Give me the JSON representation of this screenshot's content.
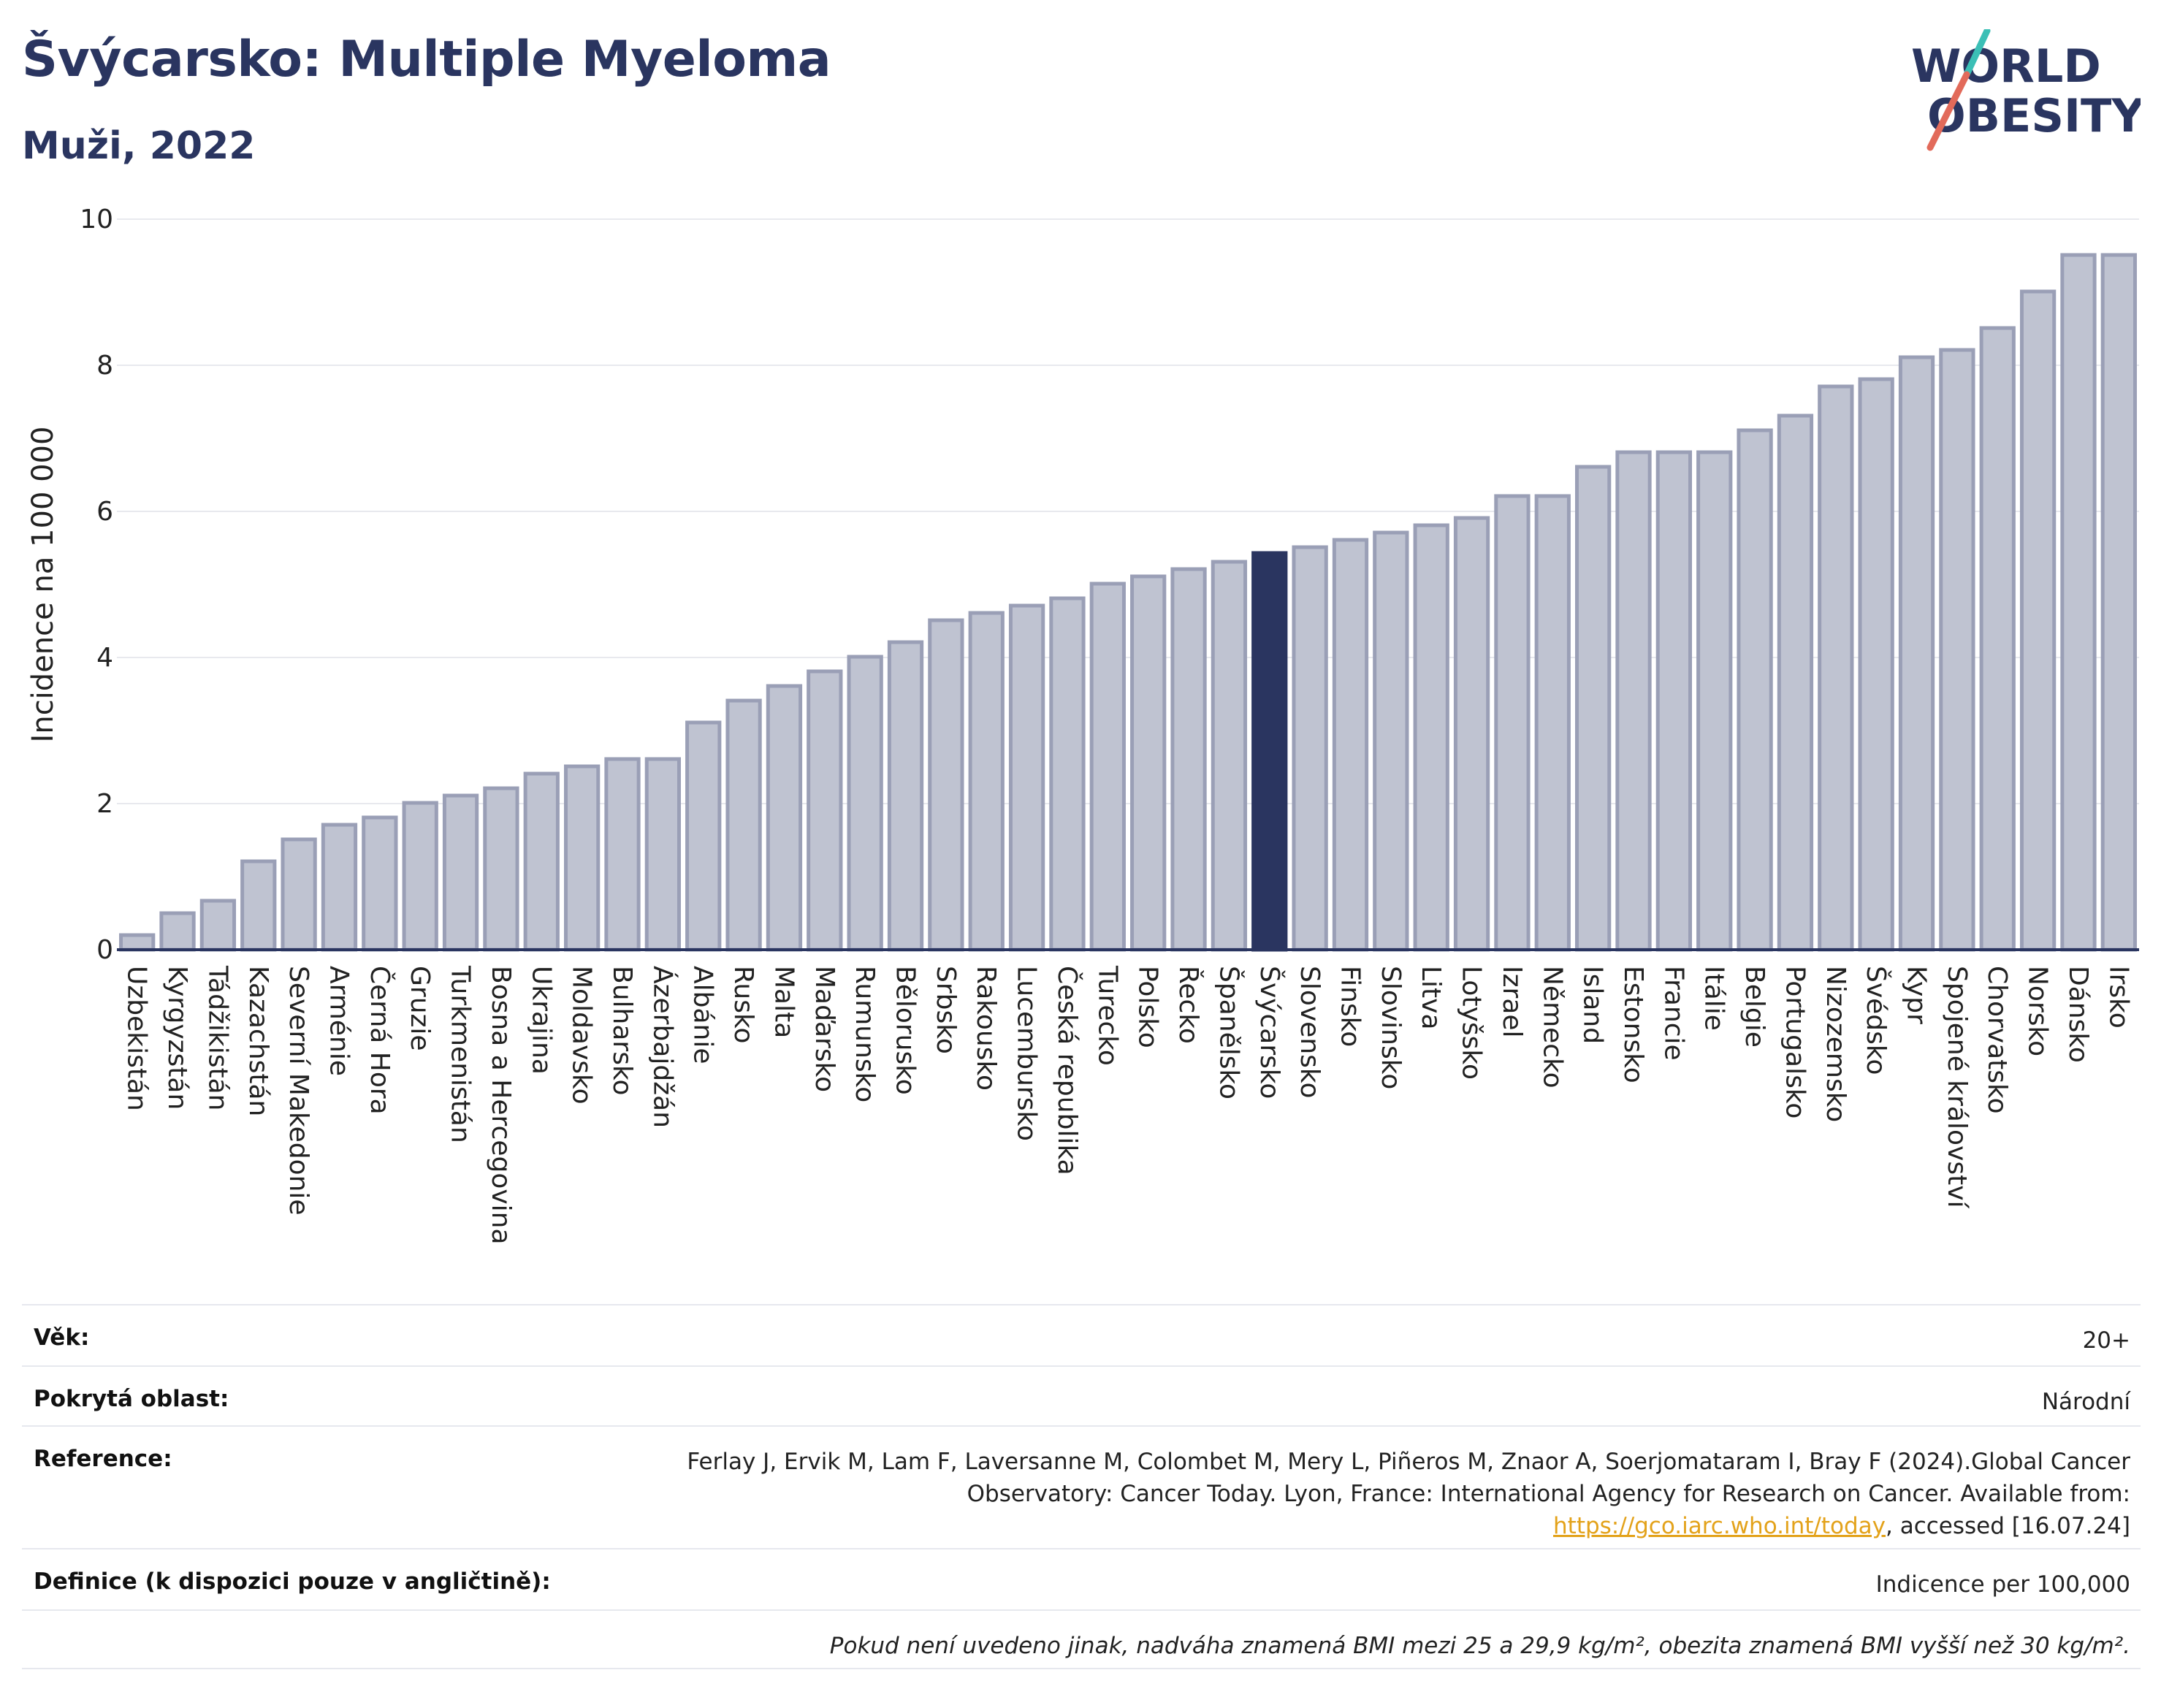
{
  "header": {
    "title": "Švýcarsko: Multiple Myeloma",
    "subtitle": "Muži, 2022",
    "logo_line1": "WORLD",
    "logo_line2": "OBESITY"
  },
  "chart_data": {
    "type": "bar",
    "title": "Švýcarsko: Multiple Myeloma",
    "subtitle": "Muži, 2022",
    "ylabel": "Incidence na 100 000",
    "xlabel": "",
    "ylim": [
      0,
      10
    ],
    "yticks": [
      0,
      2,
      4,
      6,
      8,
      10
    ],
    "grid": true,
    "highlight": "Švýcarsko",
    "colors": {
      "bar": "#bfc3d1",
      "bar_edge": "#9a9fb6",
      "highlight": "#2a3560",
      "axis": "#2a3560"
    },
    "categories": [
      "Uzbekistán",
      "Kyrgyzstán",
      "Tádžikistán",
      "Kazachstán",
      "Severní Makedonie",
      "Arménie",
      "Černá Hora",
      "Gruzie",
      "Turkmenistán",
      "Bosna a Hercegovina",
      "Ukrajina",
      "Moldavsko",
      "Bulharsko",
      "Ázerbajdžán",
      "Albánie",
      "Rusko",
      "Malta",
      "Maďarsko",
      "Rumunsko",
      "Bělorusko",
      "Srbsko",
      "Rakousko",
      "Lucembursko",
      "Česká republika",
      "Turecko",
      "Polsko",
      "Řecko",
      "Španělsko",
      "Švýcarsko",
      "Slovensko",
      "Finsko",
      "Slovinsko",
      "Litva",
      "Lotyšsko",
      "Izrael",
      "Německo",
      "Island",
      "Estonsko",
      "Francie",
      "Itálie",
      "Belgie",
      "Portugalsko",
      "Nizozemsko",
      "Švédsko",
      "Kypr",
      "Spojené království",
      "Chorvatsko",
      "Norsko",
      "Dánsko",
      "Irsko"
    ],
    "values": [
      0.2,
      0.5,
      0.67,
      1.21,
      1.51,
      1.71,
      1.81,
      2.01,
      2.11,
      2.21,
      2.41,
      2.51,
      2.61,
      2.61,
      3.11,
      3.41,
      3.61,
      3.81,
      4.01,
      4.21,
      4.51,
      4.61,
      4.71,
      4.81,
      5.01,
      5.11,
      5.21,
      5.31,
      5.43,
      5.51,
      5.61,
      5.71,
      5.81,
      5.91,
      6.21,
      6.21,
      6.61,
      6.81,
      6.81,
      6.81,
      7.11,
      7.31,
      7.71,
      7.81,
      8.11,
      8.21,
      8.51,
      9.01,
      9.51,
      9.51
    ]
  },
  "meta": {
    "age_label": "Věk:",
    "age_value": "20+",
    "area_label": "Pokrytá oblast:",
    "area_value": "Národní",
    "ref_label": "Reference:",
    "ref_text_before": "Ferlay J, Ervik M, Lam F, Laversanne M, Colombet M, Mery L, Piñeros M, Znaor A, Soerjomataram I, Bray F (2024).Global Cancer Observatory: Cancer Today. Lyon, France: International Agency for Research on Cancer. Available from: ",
    "ref_link": "https://gco.iarc.who.int/today",
    "ref_text_after": ", accessed [16.07.24]",
    "def_label": "Definice (k dispozici pouze v angličtině):",
    "def_value": "Indicence per 100,000",
    "note": "Pokud není uvedeno jinak, nadváha znamená BMI mezi 25 a 29,9 kg/m², obezita znamená BMI vyšší než 30 kg/m²."
  }
}
